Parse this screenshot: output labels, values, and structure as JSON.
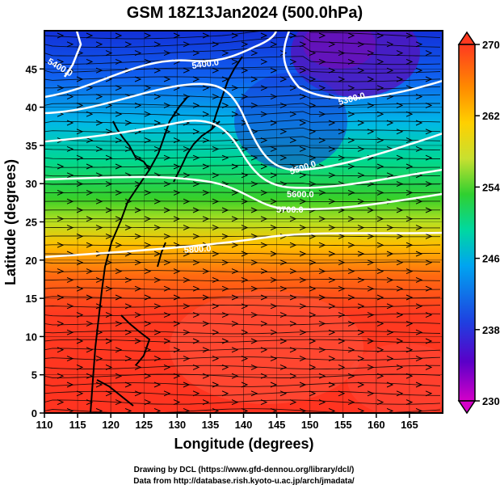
{
  "chart_data": {
    "type": "heatmap",
    "title": "GSM 18Z13Jan2024 (500.0hPa)",
    "xlabel": "Longitude (degrees)",
    "ylabel": "Latitude  (degrees)",
    "xlim": [
      110,
      170
    ],
    "ylim": [
      0,
      50
    ],
    "x_ticks": [
      "110",
      "115",
      "120",
      "125",
      "130",
      "135",
      "140",
      "145",
      "150",
      "155",
      "160",
      "165"
    ],
    "y_ticks": [
      "0",
      "5",
      "10",
      "15",
      "20",
      "25",
      "30",
      "35",
      "40",
      "45"
    ],
    "colorbar": {
      "min": 230,
      "max": 270,
      "tick_labels": [
        "230",
        "238",
        "246",
        "254",
        "262",
        "270"
      ],
      "colors": [
        "#d400c8",
        "#5a00c8",
        "#1f3fe0",
        "#00a5f0",
        "#00d8a0",
        "#30d030",
        "#c8e030",
        "#ffd000",
        "#ff8a00",
        "#ff3a20"
      ]
    },
    "contours": [
      {
        "label": "5300.0"
      },
      {
        "label": "5400.0"
      },
      {
        "label": "5500.0"
      },
      {
        "label": "5600.0"
      },
      {
        "label": "5700.0"
      },
      {
        "label": "5800.0"
      }
    ],
    "grid": true
  },
  "footer": {
    "line1": "Drawing by DCL (https://www.gfd-dennou.org/library/dcl/)",
    "line2": "Data from http://database.rish.kyoto-u.ac.jp/arch/jmadata/"
  }
}
